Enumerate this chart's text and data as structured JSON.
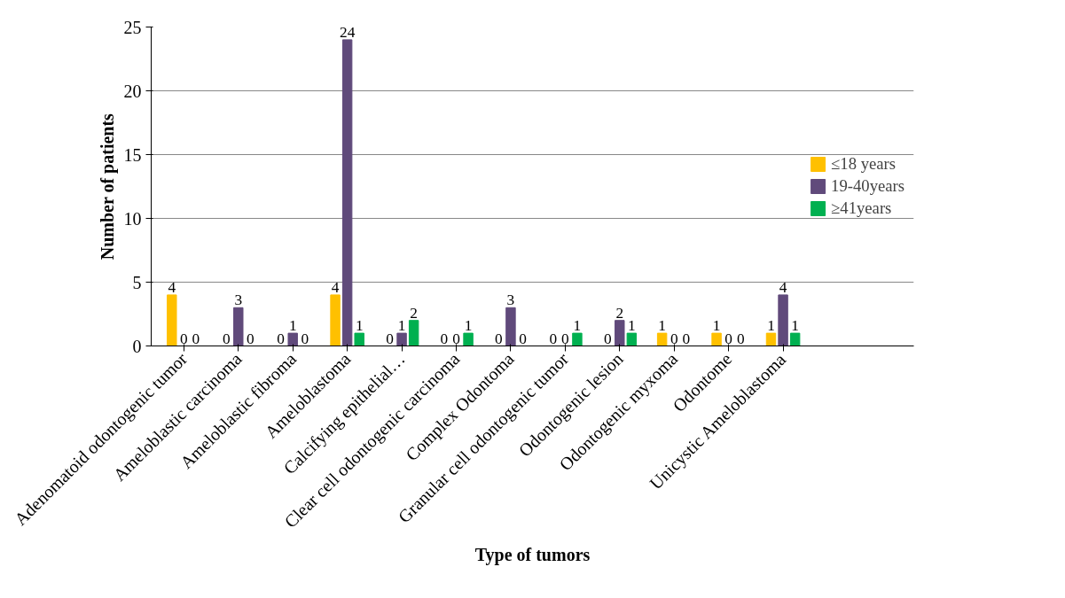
{
  "chart_data": {
    "type": "bar",
    "xlabel": "Type of tumors",
    "ylabel": "Number of patients",
    "categories": [
      "Adenomatoid odontogenic tumor",
      "Ameloblastic carcinoma",
      "Ameloblastic fibroma",
      "Ameloblastoma",
      "Calcifying epithelial…",
      "Clear cell odontogenic carcinoma",
      "Complex Odontoma",
      "Granular cell odontogenic tumor",
      "Odontogenic lesion",
      "Odontogenic myxoma",
      "Odontome",
      "Unicystic Ameloblastoma"
    ],
    "series": [
      {
        "name": "≤18 years",
        "color": "#ffc000",
        "values": [
          4,
          0,
          0,
          4,
          0,
          0,
          0,
          0,
          0,
          1,
          1,
          1
        ]
      },
      {
        "name": "19-40years",
        "color": "#604a7b",
        "values": [
          0,
          3,
          1,
          24,
          1,
          0,
          3,
          0,
          2,
          0,
          0,
          4
        ]
      },
      {
        "name": "≥41years",
        "color": "#00b050",
        "values": [
          0,
          0,
          0,
          1,
          2,
          1,
          0,
          1,
          1,
          0,
          0,
          1
        ]
      }
    ],
    "ylim": [
      0,
      25
    ],
    "yticks": [
      0,
      5,
      10,
      15,
      20,
      25
    ],
    "grid": "y",
    "legend": "right",
    "data_labels": true
  }
}
